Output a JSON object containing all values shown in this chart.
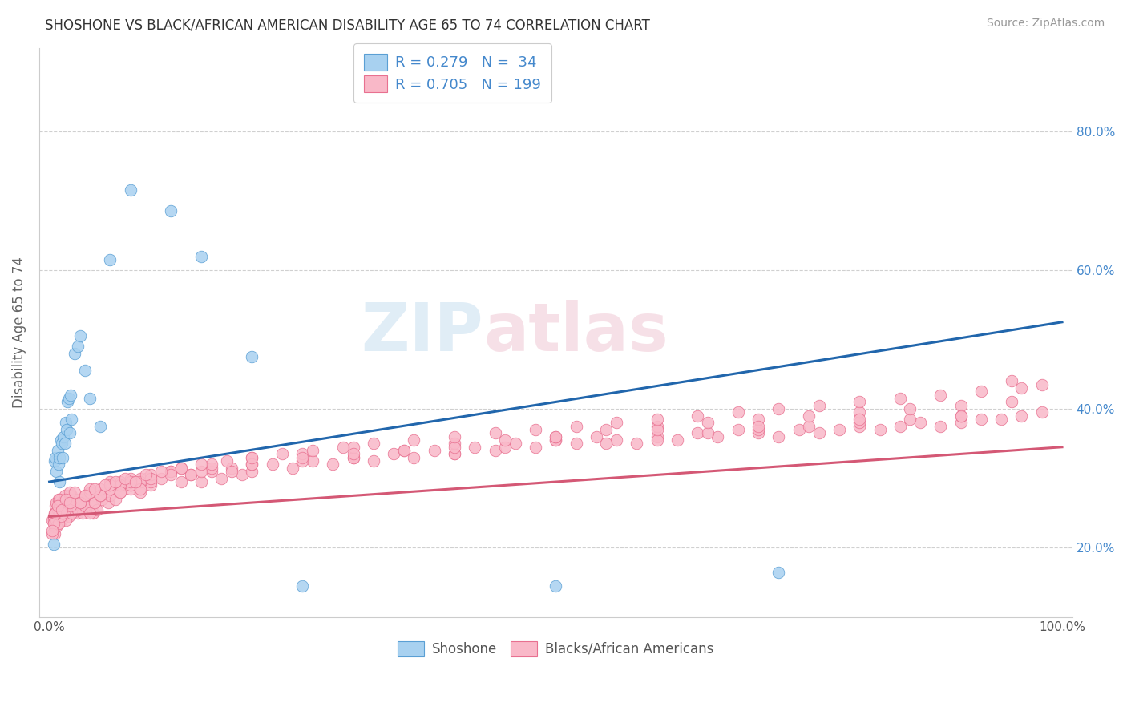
{
  "title": "SHOSHONE VS BLACK/AFRICAN AMERICAN DISABILITY AGE 65 TO 74 CORRELATION CHART",
  "source": "Source: ZipAtlas.com",
  "ylabel": "Disability Age 65 to 74",
  "watermark_line1": "ZIP",
  "watermark_line2": "atlas",
  "shoshone_R": 0.279,
  "shoshone_N": 34,
  "black_R": 0.705,
  "black_N": 199,
  "xlim": [
    -0.01,
    1.01
  ],
  "ylim": [
    0.1,
    0.92
  ],
  "xtick_positions": [
    0.0,
    0.2,
    0.4,
    0.6,
    0.8,
    1.0
  ],
  "xticklabels": [
    "0.0%",
    "",
    "",
    "",
    "",
    "100.0%"
  ],
  "ytick_positions": [
    0.2,
    0.4,
    0.6,
    0.8
  ],
  "yticklabels_right": [
    "20.0%",
    "40.0%",
    "60.0%",
    "80.0%"
  ],
  "blue_scatter_color": "#a8d1f0",
  "blue_edge_color": "#5a9fd4",
  "pink_scatter_color": "#f9b8c8",
  "pink_edge_color": "#e87090",
  "blue_line_color": "#2166ac",
  "pink_line_color": "#d45875",
  "grid_color": "#d0d0d0",
  "bg_color": "#ffffff",
  "title_color": "#333333",
  "source_color": "#999999",
  "right_tick_color": "#4488cc",
  "legend_label1": "Shoshone",
  "legend_label2": "Blacks/African Americans",
  "blue_line_y0": 0.295,
  "blue_line_y1": 0.525,
  "pink_line_y0": 0.245,
  "pink_line_y1": 0.345,
  "shoshone_x": [
    0.004,
    0.005,
    0.006,
    0.007,
    0.008,
    0.009,
    0.01,
    0.01,
    0.011,
    0.012,
    0.013,
    0.014,
    0.015,
    0.016,
    0.017,
    0.018,
    0.019,
    0.02,
    0.021,
    0.022,
    0.025,
    0.028,
    0.03,
    0.035,
    0.04,
    0.05,
    0.06,
    0.08,
    0.12,
    0.15,
    0.2,
    0.25,
    0.5,
    0.72
  ],
  "shoshone_y": [
    0.205,
    0.325,
    0.33,
    0.31,
    0.34,
    0.32,
    0.33,
    0.295,
    0.355,
    0.35,
    0.33,
    0.36,
    0.35,
    0.38,
    0.37,
    0.41,
    0.415,
    0.365,
    0.42,
    0.385,
    0.48,
    0.49,
    0.505,
    0.455,
    0.415,
    0.375,
    0.615,
    0.715,
    0.685,
    0.62,
    0.475,
    0.145,
    0.145,
    0.165
  ],
  "black_x": [
    0.003,
    0.004,
    0.005,
    0.005,
    0.006,
    0.006,
    0.007,
    0.007,
    0.008,
    0.008,
    0.009,
    0.009,
    0.01,
    0.01,
    0.011,
    0.011,
    0.012,
    0.012,
    0.013,
    0.014,
    0.015,
    0.015,
    0.016,
    0.017,
    0.018,
    0.019,
    0.02,
    0.02,
    0.021,
    0.022,
    0.023,
    0.024,
    0.025,
    0.026,
    0.027,
    0.028,
    0.029,
    0.03,
    0.031,
    0.032,
    0.033,
    0.035,
    0.037,
    0.039,
    0.041,
    0.043,
    0.045,
    0.047,
    0.05,
    0.052,
    0.055,
    0.058,
    0.06,
    0.065,
    0.07,
    0.075,
    0.08,
    0.085,
    0.09,
    0.095,
    0.1,
    0.11,
    0.12,
    0.13,
    0.14,
    0.15,
    0.16,
    0.17,
    0.18,
    0.19,
    0.2,
    0.22,
    0.24,
    0.26,
    0.28,
    0.3,
    0.32,
    0.34,
    0.36,
    0.38,
    0.4,
    0.42,
    0.44,
    0.46,
    0.48,
    0.5,
    0.52,
    0.54,
    0.56,
    0.58,
    0.6,
    0.62,
    0.64,
    0.66,
    0.68,
    0.7,
    0.72,
    0.74,
    0.76,
    0.78,
    0.8,
    0.82,
    0.84,
    0.86,
    0.88,
    0.9,
    0.92,
    0.94,
    0.96,
    0.98,
    0.004,
    0.005,
    0.006,
    0.007,
    0.008,
    0.009,
    0.01,
    0.012,
    0.014,
    0.016,
    0.018,
    0.02,
    0.022,
    0.025,
    0.028,
    0.03,
    0.035,
    0.04,
    0.045,
    0.05,
    0.06,
    0.07,
    0.08,
    0.09,
    0.1,
    0.12,
    0.14,
    0.16,
    0.18,
    0.2,
    0.25,
    0.3,
    0.35,
    0.4,
    0.45,
    0.5,
    0.55,
    0.6,
    0.65,
    0.7,
    0.75,
    0.8,
    0.85,
    0.9,
    0.95,
    0.98,
    0.005,
    0.007,
    0.009,
    0.011,
    0.013,
    0.015,
    0.018,
    0.021,
    0.025,
    0.03,
    0.035,
    0.04,
    0.05,
    0.06,
    0.07,
    0.08,
    0.09,
    0.1,
    0.13,
    0.16,
    0.2,
    0.25,
    0.3,
    0.35,
    0.4,
    0.45,
    0.5,
    0.55,
    0.6,
    0.65,
    0.7,
    0.75,
    0.8,
    0.85,
    0.9,
    0.95,
    0.01,
    0.02,
    0.03,
    0.04,
    0.05,
    0.06,
    0.07,
    0.08,
    0.09,
    0.1,
    0.12,
    0.15,
    0.2,
    0.25,
    0.3,
    0.4,
    0.5,
    0.6,
    0.7,
    0.8,
    0.9,
    0.004,
    0.006,
    0.008,
    0.012,
    0.016,
    0.02,
    0.025,
    0.035,
    0.045,
    0.055,
    0.065,
    0.075,
    0.085,
    0.095,
    0.11,
    0.13,
    0.15,
    0.175,
    0.2,
    0.23,
    0.26,
    0.29,
    0.32,
    0.36,
    0.4,
    0.44,
    0.48,
    0.52,
    0.56,
    0.6,
    0.64,
    0.68,
    0.72,
    0.76,
    0.8,
    0.84,
    0.88,
    0.92,
    0.96,
    0.003,
    0.003
  ],
  "black_y": [
    0.24,
    0.24,
    0.23,
    0.25,
    0.24,
    0.26,
    0.245,
    0.265,
    0.25,
    0.235,
    0.255,
    0.27,
    0.245,
    0.26,
    0.25,
    0.27,
    0.255,
    0.24,
    0.265,
    0.25,
    0.26,
    0.275,
    0.25,
    0.265,
    0.255,
    0.245,
    0.255,
    0.27,
    0.26,
    0.275,
    0.25,
    0.265,
    0.255,
    0.27,
    0.26,
    0.25,
    0.265,
    0.255,
    0.27,
    0.26,
    0.25,
    0.265,
    0.255,
    0.275,
    0.26,
    0.25,
    0.265,
    0.255,
    0.275,
    0.27,
    0.28,
    0.265,
    0.275,
    0.27,
    0.28,
    0.29,
    0.285,
    0.295,
    0.28,
    0.3,
    0.29,
    0.3,
    0.31,
    0.295,
    0.305,
    0.295,
    0.31,
    0.3,
    0.315,
    0.305,
    0.31,
    0.32,
    0.315,
    0.325,
    0.32,
    0.33,
    0.325,
    0.335,
    0.33,
    0.34,
    0.335,
    0.345,
    0.34,
    0.35,
    0.345,
    0.355,
    0.35,
    0.36,
    0.355,
    0.35,
    0.36,
    0.355,
    0.365,
    0.36,
    0.37,
    0.365,
    0.36,
    0.37,
    0.365,
    0.37,
    0.375,
    0.37,
    0.375,
    0.38,
    0.375,
    0.38,
    0.385,
    0.385,
    0.39,
    0.395,
    0.245,
    0.23,
    0.25,
    0.24,
    0.255,
    0.235,
    0.25,
    0.265,
    0.255,
    0.24,
    0.26,
    0.275,
    0.25,
    0.265,
    0.255,
    0.27,
    0.26,
    0.25,
    0.265,
    0.275,
    0.285,
    0.295,
    0.29,
    0.3,
    0.295,
    0.31,
    0.305,
    0.315,
    0.31,
    0.32,
    0.325,
    0.33,
    0.34,
    0.335,
    0.345,
    0.355,
    0.35,
    0.355,
    0.365,
    0.37,
    0.375,
    0.38,
    0.385,
    0.39,
    0.44,
    0.435,
    0.22,
    0.23,
    0.235,
    0.245,
    0.25,
    0.255,
    0.265,
    0.26,
    0.27,
    0.265,
    0.275,
    0.28,
    0.285,
    0.295,
    0.29,
    0.3,
    0.295,
    0.305,
    0.315,
    0.32,
    0.33,
    0.335,
    0.345,
    0.34,
    0.35,
    0.355,
    0.36,
    0.37,
    0.375,
    0.38,
    0.385,
    0.39,
    0.395,
    0.4,
    0.405,
    0.41,
    0.27,
    0.28,
    0.265,
    0.285,
    0.275,
    0.29,
    0.28,
    0.295,
    0.285,
    0.3,
    0.305,
    0.31,
    0.32,
    0.33,
    0.335,
    0.345,
    0.36,
    0.37,
    0.375,
    0.385,
    0.39,
    0.235,
    0.25,
    0.26,
    0.255,
    0.27,
    0.265,
    0.28,
    0.275,
    0.285,
    0.29,
    0.295,
    0.3,
    0.295,
    0.305,
    0.31,
    0.315,
    0.32,
    0.325,
    0.33,
    0.335,
    0.34,
    0.345,
    0.35,
    0.355,
    0.36,
    0.365,
    0.37,
    0.375,
    0.38,
    0.385,
    0.39,
    0.395,
    0.4,
    0.405,
    0.41,
    0.415,
    0.42,
    0.425,
    0.43,
    0.22,
    0.225
  ]
}
